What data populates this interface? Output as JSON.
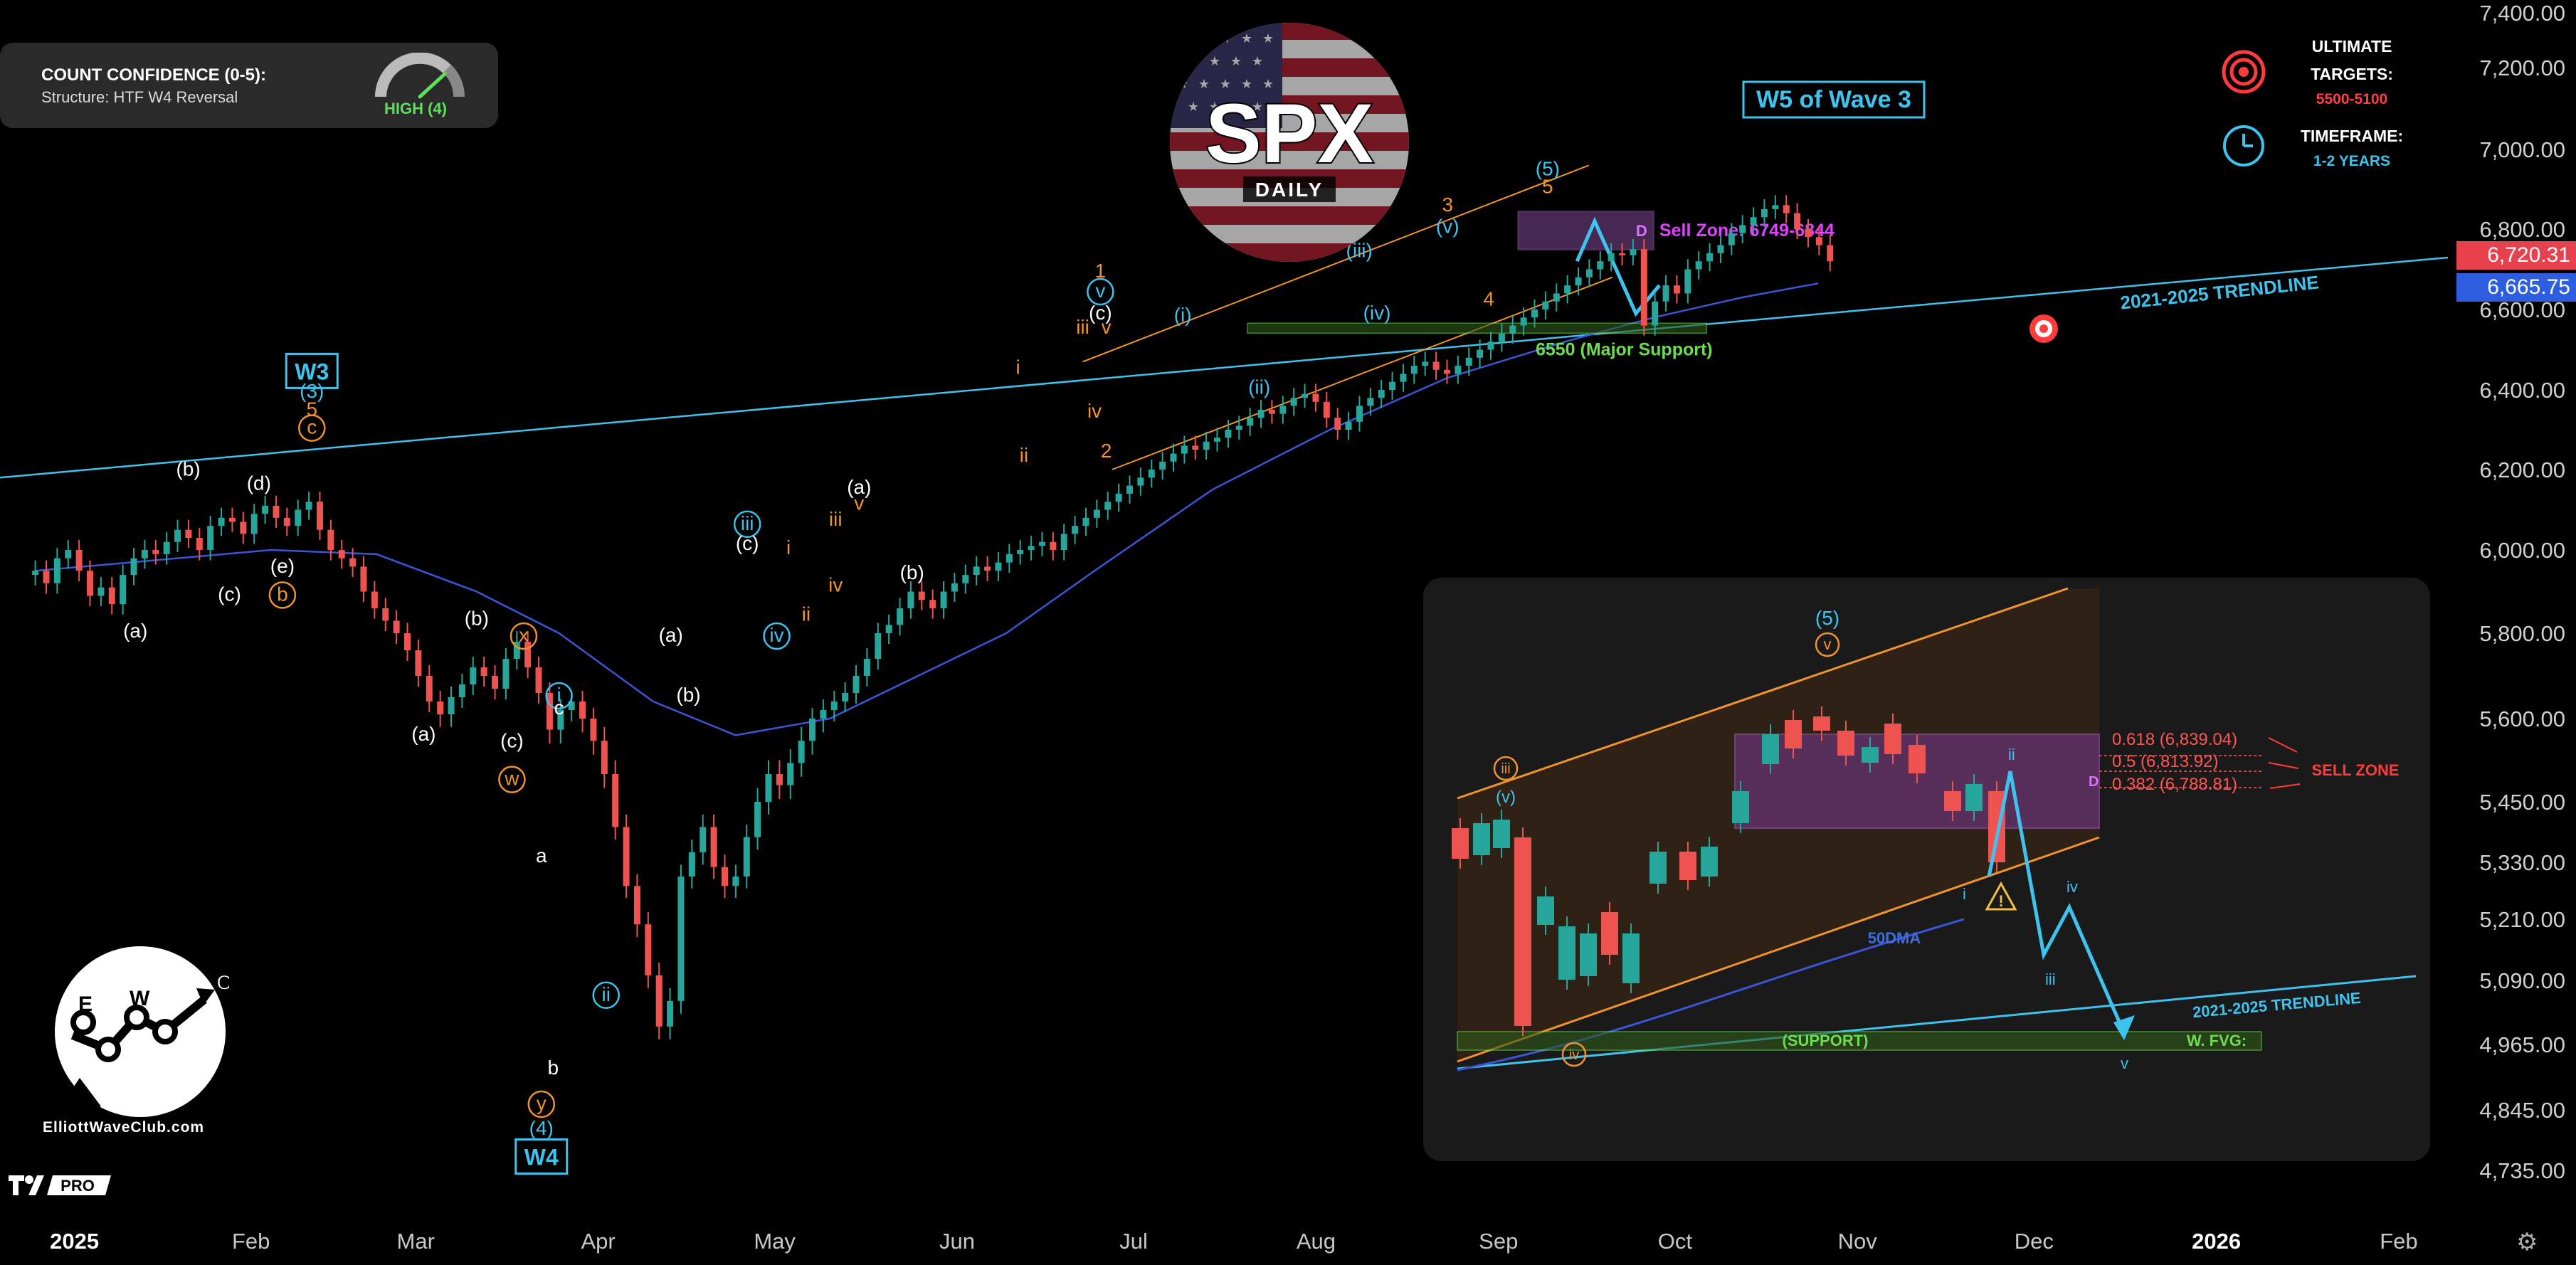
{
  "info_panel": {
    "title": "COUNT CONFIDENCE (0-5):",
    "structure": "Structure: HTF W4 Reversal",
    "gauge_value": 4,
    "gauge_label": "HIGH (4)"
  },
  "header": {
    "ticker": "SPX",
    "timeframe": "DAILY",
    "wave_box": "W5 of Wave 3"
  },
  "legend": {
    "targets_title": "ULTIMATE",
    "targets_title2": "TARGETS:",
    "targets_value": "5500-5100",
    "timeframe_title": "TIMEFRAME:",
    "timeframe_value": "1-2 YEARS"
  },
  "annotations": {
    "sell_zone": "Sell Zone: 6749-6844",
    "major_support": "6550 (Major Support)",
    "trendline": "2021-2025 TRENDLINE",
    "w3_box": "W3",
    "w4_box": "W4",
    "d_label": "D"
  },
  "inset": {
    "fib": [
      "0.618 (6,839.04)",
      "0.5 (6,813.92)",
      "0.382 (6,788.81)"
    ],
    "sell_zone": "SELL ZONE",
    "ma_label": "50DMA",
    "trendline": "2021-2025 TRENDLINE",
    "support": "(SUPPORT)",
    "fvg": "W. FVG:",
    "wave_top": "(5)",
    "wave_v": "v"
  },
  "price_tags": {
    "last": "6,720.31",
    "ma": "6,665.75"
  },
  "logo": {
    "site": "ElliottWaveClub.com",
    "letters": [
      "E",
      "W",
      "C"
    ],
    "badge": "PRO"
  },
  "colors": {
    "up": "#26a69a",
    "down": "#ef5350",
    "ma": "#3b55d6",
    "trend": "#3ec3ee",
    "orange": "#f0932b",
    "cyan": "#3ec3ee",
    "purple": "#9b59b6",
    "green": "#6ddc4f",
    "red": "#ff3b3b"
  },
  "chart_data": {
    "type": "candlestick",
    "title": "SPX",
    "subtitle": "DAILY",
    "ylim": [
      4690,
      7400
    ],
    "y_ticks": [
      7400,
      7200,
      7000,
      6800,
      6600,
      6400,
      6200,
      6000,
      5800,
      5600,
      5450,
      5330,
      5210,
      5090,
      4965,
      4845,
      4735
    ],
    "y_tick_labels": [
      "7,400.00",
      "7,200.00",
      "7,000.00",
      "6,800.00",
      "6,600.00",
      "6,400.00",
      "6,200.00",
      "6,000.00",
      "5,800.00",
      "5,600.00",
      "5,450.00",
      "5,330.00",
      "5,210.00",
      "5,090.00",
      "4,965.00",
      "4,845.00",
      "4,735.00"
    ],
    "x_ticks": [
      "2025",
      "Feb",
      "Mar",
      "Apr",
      "May",
      "Jun",
      "Jul",
      "Aug",
      "Sep",
      "Oct",
      "Nov",
      "Dec",
      "2026",
      "Feb"
    ],
    "x_tick_pos": [
      0,
      30,
      58,
      89,
      119,
      150,
      180,
      211,
      242,
      272,
      303,
      333,
      364,
      395
    ],
    "x_range": [
      -6,
      410
    ],
    "closes": [
      5950,
      5920,
      5980,
      6000,
      5950,
      5890,
      5910,
      5870,
      5940,
      5980,
      6000,
      5990,
      6020,
      6050,
      6030,
      6000,
      6060,
      6080,
      6070,
      6040,
      6090,
      6110,
      6080,
      6060,
      6100,
      6120,
      6050,
      6000,
      5980,
      5960,
      5900,
      5860,
      5830,
      5800,
      5760,
      5700,
      5640,
      5610,
      5650,
      5680,
      5720,
      5700,
      5670,
      5740,
      5780,
      5720,
      5660,
      5580,
      5620,
      5640,
      5600,
      5560,
      5500,
      5400,
      5280,
      5200,
      5100,
      5000,
      5050,
      5300,
      5350,
      5400,
      5320,
      5280,
      5300,
      5380,
      5450,
      5500,
      5480,
      5520,
      5560,
      5600,
      5620,
      5640,
      5660,
      5700,
      5740,
      5800,
      5820,
      5860,
      5900,
      5880,
      5860,
      5900,
      5920,
      5940,
      5960,
      5950,
      5970,
      5990,
      6000,
      6010,
      6020,
      6000,
      6040,
      6060,
      6080,
      6100,
      6120,
      6140,
      6160,
      6180,
      6200,
      6220,
      6240,
      6260,
      6250,
      6270,
      6280,
      6300,
      6310,
      6330,
      6350,
      6340,
      6360,
      6380,
      6390,
      6370,
      6330,
      6300,
      6320,
      6360,
      6380,
      6400,
      6420,
      6440,
      6460,
      6470,
      6450,
      6440,
      6460,
      6480,
      6500,
      6520,
      6540,
      6560,
      6580,
      6600,
      6620,
      6640,
      6660,
      6680,
      6700,
      6720,
      6740,
      6735,
      6750,
      6560,
      6620,
      6660,
      6640,
      6700,
      6720,
      6740,
      6760,
      6790,
      6810,
      6830,
      6850,
      6860,
      6840,
      6800,
      6780,
      6760,
      6720
    ],
    "ma50": [
      [
        0,
        5950
      ],
      [
        40,
        6000
      ],
      [
        58,
        5990
      ],
      [
        75,
        5900
      ],
      [
        89,
        5800
      ],
      [
        105,
        5640
      ],
      [
        119,
        5570
      ],
      [
        135,
        5600
      ],
      [
        150,
        5700
      ],
      [
        165,
        5800
      ],
      [
        180,
        5950
      ],
      [
        200,
        6150
      ],
      [
        220,
        6300
      ],
      [
        240,
        6430
      ],
      [
        260,
        6520
      ],
      [
        275,
        6580
      ],
      [
        290,
        6630
      ],
      [
        303,
        6665
      ]
    ],
    "trendline": [
      [
        -6,
        6180
      ],
      [
        410,
        6680
      ]
    ],
    "sell_zone": [
      6749,
      6844
    ],
    "support_level": 6550,
    "wave_labels": [
      {
        "t": "W3",
        "x": 47,
        "y": 6440,
        "c": "cyan",
        "box": true
      },
      {
        "t": "(3)",
        "x": 47,
        "y": 6380,
        "c": "cyan"
      },
      {
        "t": "5",
        "x": 47,
        "y": 6335,
        "c": "orange"
      },
      {
        "t": "c",
        "x": 47,
        "y": 6290,
        "c": "orange",
        "circle": true
      },
      {
        "t": "(b)",
        "x": 26,
        "y": 6185,
        "c": "white"
      },
      {
        "t": "(d)",
        "x": 38,
        "y": 6150,
        "c": "white"
      },
      {
        "t": "(e)",
        "x": 42,
        "y": 5945,
        "c": "white"
      },
      {
        "t": "b",
        "x": 42,
        "y": 5878,
        "c": "orange",
        "circle": true
      },
      {
        "t": "(c)",
        "x": 33,
        "y": 5878,
        "c": "white"
      },
      {
        "t": "(a)",
        "x": 17,
        "y": 5790,
        "c": "white"
      },
      {
        "t": "(b)",
        "x": 75,
        "y": 5820,
        "c": "white"
      },
      {
        "t": "(a)",
        "x": 66,
        "y": 5560,
        "c": "white"
      },
      {
        "t": "x",
        "x": 83,
        "y": 5780,
        "c": "orange",
        "circle": true
      },
      {
        "t": "(c)",
        "x": 81,
        "y": 5548,
        "c": "white"
      },
      {
        "t": "w",
        "x": 81,
        "y": 5480,
        "c": "orange",
        "circle": true
      },
      {
        "t": "i",
        "x": 89,
        "y": 5640,
        "c": "cyan",
        "circle": true
      },
      {
        "t": "c",
        "x": 89,
        "y": 5610,
        "c": "white"
      },
      {
        "t": "a",
        "x": 86,
        "y": 5330,
        "c": "white"
      },
      {
        "t": "b",
        "x": 88,
        "y": 4910,
        "c": "white"
      },
      {
        "t": "y",
        "x": 86,
        "y": 4845,
        "c": "orange",
        "circle": true
      },
      {
        "t": "(4)",
        "x": 86,
        "y": 4800,
        "c": "cyan"
      },
      {
        "t": "W4",
        "x": 86,
        "y": 4755,
        "c": "cyan",
        "box": true
      },
      {
        "t": "ii",
        "x": 97,
        "y": 5050,
        "c": "cyan",
        "circle": true
      },
      {
        "t": "(a)",
        "x": 108,
        "y": 5780,
        "c": "white"
      },
      {
        "t": "(b)",
        "x": 111,
        "y": 5640,
        "c": "white"
      },
      {
        "t": "iii",
        "x": 121,
        "y": 6050,
        "c": "cyan",
        "circle": true
      },
      {
        "t": "(c)",
        "x": 121,
        "y": 6000,
        "c": "white"
      },
      {
        "t": "iv",
        "x": 126,
        "y": 5780,
        "c": "cyan",
        "circle": true
      },
      {
        "t": "i",
        "x": 128,
        "y": 5990,
        "c": "orange"
      },
      {
        "t": "ii",
        "x": 131,
        "y": 5830,
        "c": "orange"
      },
      {
        "t": "iii",
        "x": 136,
        "y": 6060,
        "c": "orange"
      },
      {
        "t": "iv",
        "x": 136,
        "y": 5900,
        "c": "orange"
      },
      {
        "t": "(a)",
        "x": 140,
        "y": 6140,
        "c": "white"
      },
      {
        "t": "v",
        "x": 140,
        "y": 6100,
        "c": "orange"
      },
      {
        "t": "(b)",
        "x": 149,
        "y": 5930,
        "c": "white"
      },
      {
        "t": "i",
        "x": 167,
        "y": 6440,
        "c": "orange"
      },
      {
        "t": "ii",
        "x": 168,
        "y": 6220,
        "c": "orange"
      },
      {
        "t": "1",
        "x": 181,
        "y": 6680,
        "c": "orange"
      },
      {
        "t": "v",
        "x": 181,
        "y": 6630,
        "c": "cyan",
        "circle": true
      },
      {
        "t": "(c)",
        "x": 181,
        "y": 6575,
        "c": "white"
      },
      {
        "t": "iii",
        "x": 178,
        "y": 6540,
        "c": "orange"
      },
      {
        "t": "v",
        "x": 182,
        "y": 6540,
        "c": "orange"
      },
      {
        "t": "iv",
        "x": 180,
        "y": 6330,
        "c": "orange"
      },
      {
        "t": "2",
        "x": 182,
        "y": 6230,
        "c": "orange"
      },
      {
        "t": "(i)",
        "x": 195,
        "y": 6570,
        "c": "cyan"
      },
      {
        "t": "(ii)",
        "x": 208,
        "y": 6390,
        "c": "cyan"
      },
      {
        "t": "(iii)",
        "x": 225,
        "y": 6730,
        "c": "cyan"
      },
      {
        "t": "(iv)",
        "x": 228,
        "y": 6575,
        "c": "cyan"
      },
      {
        "t": "(v)",
        "x": 240,
        "y": 6790,
        "c": "cyan"
      },
      {
        "t": "3",
        "x": 240,
        "y": 6845,
        "c": "orange"
      },
      {
        "t": "4",
        "x": 247,
        "y": 6610,
        "c": "orange"
      },
      {
        "t": "(5)",
        "x": 257,
        "y": 6935,
        "c": "cyan"
      },
      {
        "t": "5",
        "x": 257,
        "y": 6890,
        "c": "orange"
      }
    ]
  }
}
